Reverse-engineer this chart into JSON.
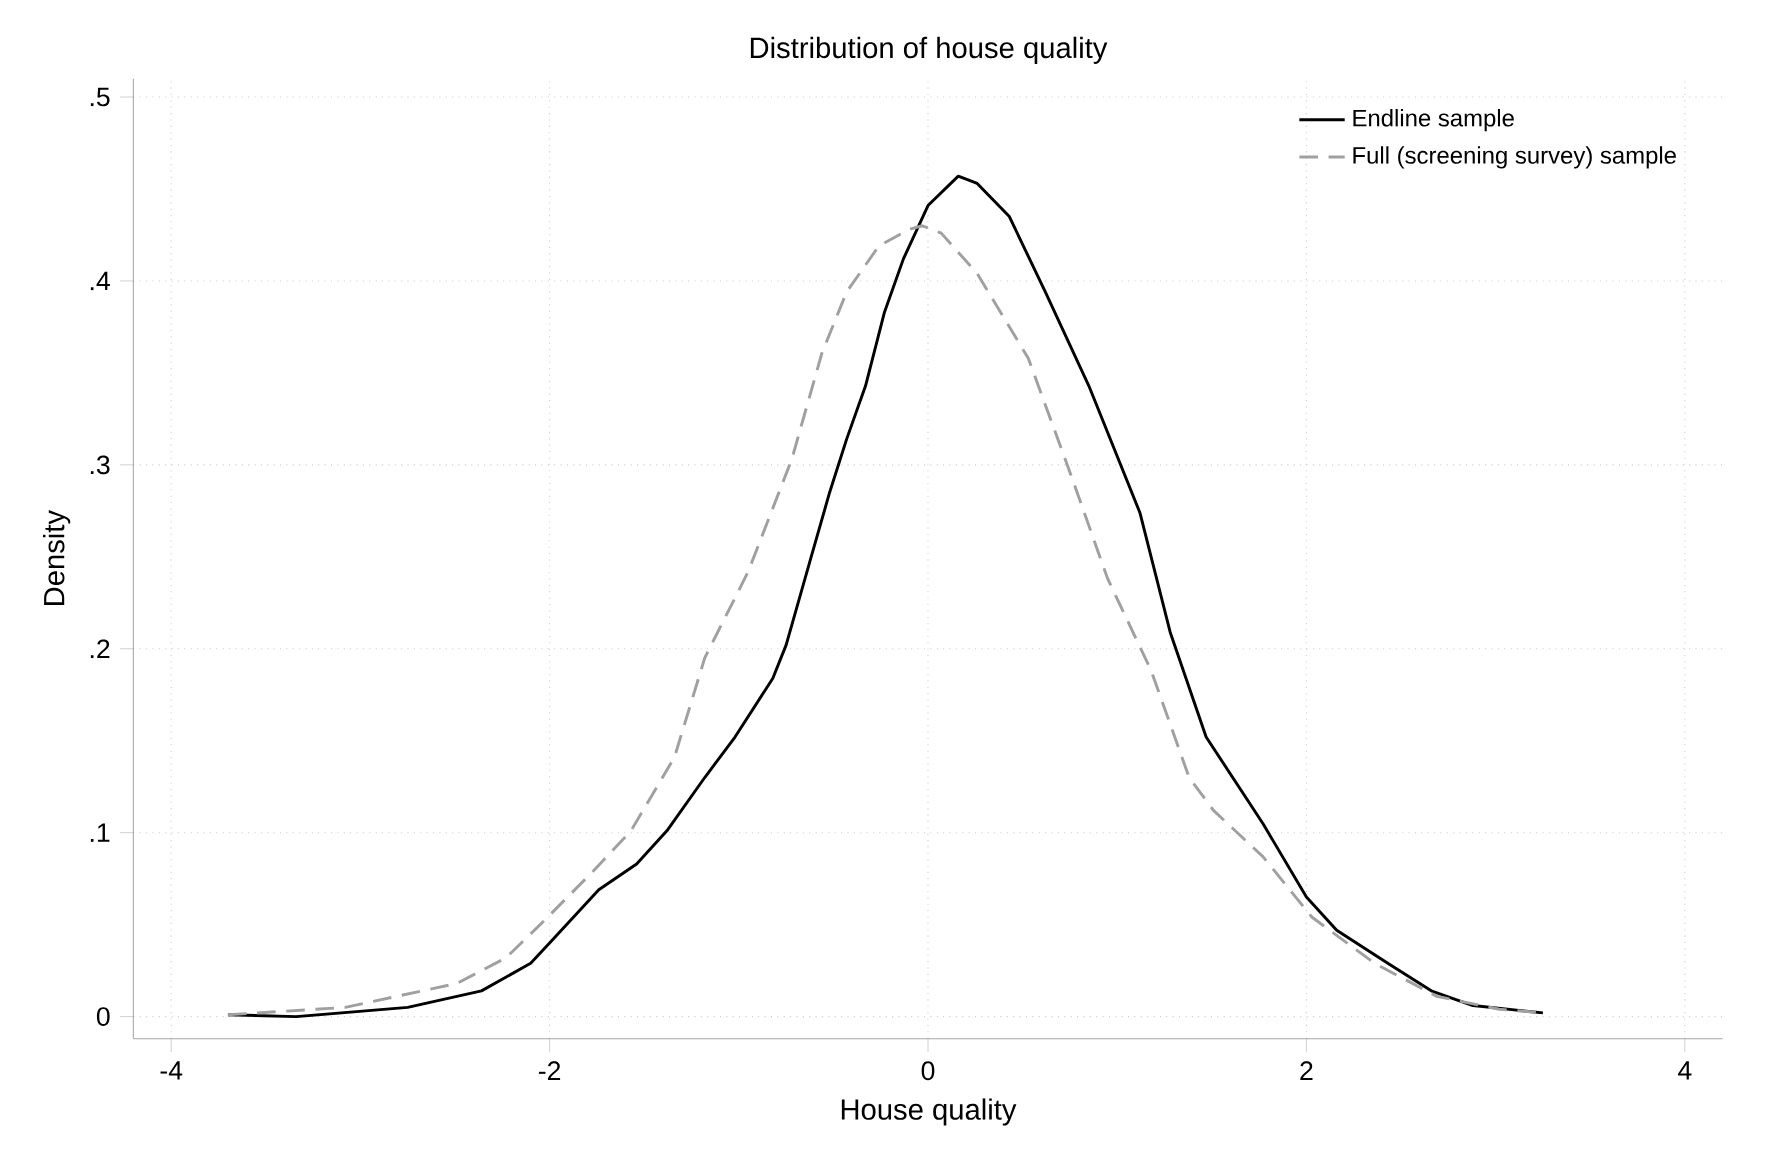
{
  "chart_data": {
    "type": "line",
    "title": "Distribution of house quality",
    "xlabel": "House quality",
    "ylabel": "Density",
    "xlim": [
      -4.2,
      4.2
    ],
    "ylim": [
      -0.012,
      0.51
    ],
    "xticks": [
      {
        "value": -4,
        "label": "-4"
      },
      {
        "value": -2,
        "label": "-2"
      },
      0,
      2,
      4
    ],
    "yticks": [
      0,
      {
        "value": 0.1,
        "label": ".1"
      },
      {
        "value": 0.2,
        "label": ".2"
      },
      {
        "value": 0.3,
        "label": ".3"
      },
      {
        "value": 0.4,
        "label": ".4"
      },
      {
        "value": 0.5,
        "label": ".5"
      }
    ],
    "grid": true,
    "legend": "top right",
    "marker": "none",
    "series": [
      {
        "name": "Endline sample",
        "color": "#000000",
        "line_style": "solid",
        "x": [
          -3.7,
          -3.34,
          -2.75,
          -2.36,
          -2.1,
          -2.0,
          -1.74,
          -1.54,
          -1.38,
          -1.18,
          -1.02,
          -0.82,
          -0.75,
          -0.62,
          -0.52,
          -0.43,
          -0.33,
          -0.23,
          -0.13,
          0,
          0.16,
          0.26,
          0.43,
          0.62,
          0.85,
          1.12,
          1.28,
          1.47,
          1.77,
          2.0,
          2.16,
          2.43,
          2.66,
          2.88,
          3.25
        ],
        "values": [
          0.001,
          0,
          0.005,
          0.014,
          0.029,
          0.04,
          0.069,
          0.083,
          0.101,
          0.13,
          0.152,
          0.184,
          0.202,
          0.249,
          0.285,
          0.314,
          0.343,
          0.383,
          0.412,
          0.441,
          0.457,
          0.453,
          0.435,
          0.394,
          0.343,
          0.274,
          0.209,
          0.152,
          0.105,
          0.065,
          0.047,
          0.029,
          0.014,
          0.006,
          0.002
        ]
      },
      {
        "name": "Full (screening survey) sample",
        "color": "#a0a0a0",
        "line_style": "dashed",
        "x": [
          -3.7,
          -3.08,
          -2.49,
          -2.23,
          -2.03,
          -1.77,
          -1.57,
          -1.34,
          -1.18,
          -0.95,
          -0.72,
          -0.56,
          -0.43,
          -0.26,
          -0.1,
          -0.03,
          0.07,
          0.26,
          0.53,
          0.75,
          0.95,
          1.18,
          1.38,
          1.51,
          1.77,
          2.03,
          2.36,
          2.69,
          3.02,
          3.25
        ],
        "values": [
          0.001,
          0.005,
          0.018,
          0.032,
          0.052,
          0.079,
          0.101,
          0.141,
          0.195,
          0.242,
          0.303,
          0.361,
          0.394,
          0.419,
          0.428,
          0.43,
          0.426,
          0.404,
          0.358,
          0.296,
          0.238,
          0.188,
          0.13,
          0.112,
          0.087,
          0.054,
          0.029,
          0.011,
          0.004,
          0.002
        ]
      }
    ]
  }
}
